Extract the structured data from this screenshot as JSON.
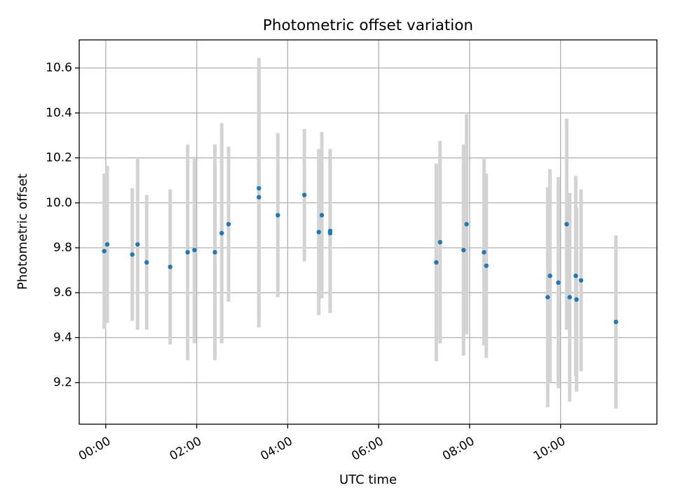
{
  "chart_data": {
    "type": "scatter",
    "title": "Photometric offset variation",
    "xlabel": "UTC time",
    "ylabel": "Photometric offset",
    "x_unit": "hours",
    "xlim": [
      "-00:35",
      "12:07"
    ],
    "ylim": [
      9.015,
      10.725
    ],
    "grid": true,
    "x_ticks": [
      "00:00",
      "02:00",
      "04:00",
      "06:00",
      "08:00",
      "10:00"
    ],
    "y_ticks": [
      "9.2",
      "9.4",
      "9.6",
      "9.8",
      "10.0",
      "10.2",
      "10.4",
      "10.6"
    ],
    "marker_color": "#1f77b4",
    "errorbar_color": "#d3d3d3",
    "points": [
      {
        "time": "23:58",
        "y": 9.785,
        "err": 0.345
      },
      {
        "time": "00:02",
        "y": 9.815,
        "err": 0.35
      },
      {
        "time": "00:35",
        "y": 9.77,
        "err": 0.295
      },
      {
        "time": "00:42",
        "y": 9.815,
        "err": 0.38
      },
      {
        "time": "00:54",
        "y": 9.735,
        "err": 0.3
      },
      {
        "time": "01:25",
        "y": 9.715,
        "err": 0.345
      },
      {
        "time": "01:48",
        "y": 9.78,
        "err": 0.48
      },
      {
        "time": "01:57",
        "y": 9.79,
        "err": 0.415
      },
      {
        "time": "02:24",
        "y": 9.78,
        "err": 0.48
      },
      {
        "time": "02:33",
        "y": 9.865,
        "err": 0.49
      },
      {
        "time": "02:42",
        "y": 9.905,
        "err": 0.345
      },
      {
        "time": "03:22",
        "y": 10.025,
        "err": 0.58
      },
      {
        "time": "03:22",
        "y": 10.065,
        "err": 0.58
      },
      {
        "time": "03:47",
        "y": 9.945,
        "err": 0.365
      },
      {
        "time": "04:22",
        "y": 10.035,
        "err": 0.295
      },
      {
        "time": "04:41",
        "y": 9.87,
        "err": 0.37
      },
      {
        "time": "04:45",
        "y": 9.945,
        "err": 0.37
      },
      {
        "time": "04:56",
        "y": 9.875,
        "err": 0.365
      },
      {
        "time": "04:56",
        "y": 9.865,
        "err": 0.355
      },
      {
        "time": "07:16",
        "y": 9.735,
        "err": 0.44
      },
      {
        "time": "07:21",
        "y": 9.825,
        "err": 0.45
      },
      {
        "time": "07:52",
        "y": 9.79,
        "err": 0.47
      },
      {
        "time": "07:56",
        "y": 9.905,
        "err": 0.49
      },
      {
        "time": "08:19",
        "y": 9.78,
        "err": 0.415
      },
      {
        "time": "08:22",
        "y": 9.72,
        "err": 0.41
      },
      {
        "time": "09:43",
        "y": 9.58,
        "err": 0.49
      },
      {
        "time": "09:46",
        "y": 9.675,
        "err": 0.475
      },
      {
        "time": "09:57",
        "y": 9.645,
        "err": 0.47
      },
      {
        "time": "10:08",
        "y": 9.905,
        "err": 0.47
      },
      {
        "time": "10:12",
        "y": 9.58,
        "err": 0.465
      },
      {
        "time": "10:20",
        "y": 9.675,
        "err": 0.445
      },
      {
        "time": "10:21",
        "y": 9.57,
        "err": 0.41
      },
      {
        "time": "10:27",
        "y": 9.655,
        "err": 0.405
      },
      {
        "time": "11:13",
        "y": 9.47,
        "err": 0.385
      }
    ]
  }
}
